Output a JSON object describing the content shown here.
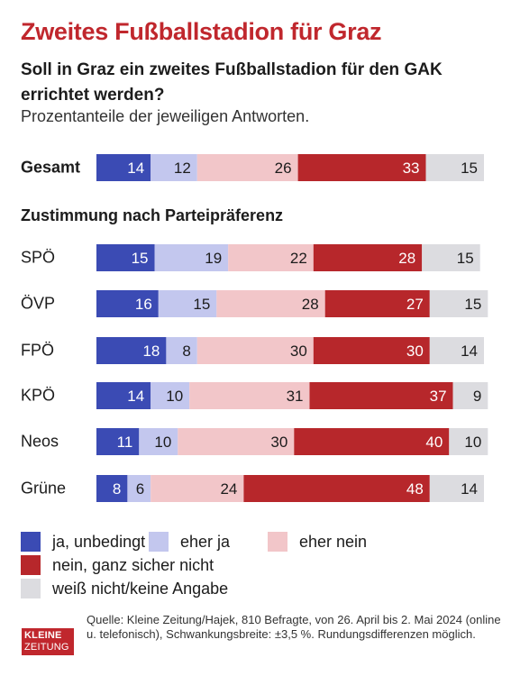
{
  "title": "Zweites Fußballstadion für Graz",
  "subtitle": "Soll in Graz ein zweites Fußballstadion für den GAK errichtet werden?",
  "note": "Prozentanteile der jeweiligen Antworten.",
  "section_label": "Zustimmung nach Parteipräferenz",
  "colors": {
    "ja_unbedingt": "#3b4bb4",
    "eher_ja": "#c3c7ee",
    "eher_nein": "#f2c6c9",
    "nein": "#b7272b",
    "weiss_nicht": "#dcdce0"
  },
  "chart_data": {
    "type": "bar",
    "orientation": "horizontal",
    "stacked": true,
    "categories": [
      "Gesamt",
      "SPÖ",
      "ÖVP",
      "FPÖ",
      "KPÖ",
      "Neos",
      "Grüne"
    ],
    "series": [
      {
        "name": "ja, unbedingt",
        "values": [
          14,
          15,
          16,
          18,
          14,
          11,
          8
        ]
      },
      {
        "name": "eher ja",
        "values": [
          12,
          19,
          15,
          8,
          10,
          10,
          6
        ]
      },
      {
        "name": "eher nein",
        "values": [
          26,
          22,
          28,
          30,
          31,
          30,
          24
        ]
      },
      {
        "name": "nein, ganz sicher nicht",
        "values": [
          33,
          28,
          27,
          30,
          37,
          40,
          48
        ]
      },
      {
        "name": "weiß nicht/keine Angabe",
        "values": [
          15,
          15,
          15,
          14,
          9,
          10,
          14
        ]
      }
    ]
  },
  "logo": {
    "line1": "KLEINE",
    "line2": "ZEITUNG"
  },
  "source": "Quelle: Kleine Zeitung/Hajek, 810 Befragte, von 26. April bis 2. Mai 2024 (online u. telefonisch), Schwankungsbreite: ±3,5 %. Rundungsdifferenzen möglich."
}
